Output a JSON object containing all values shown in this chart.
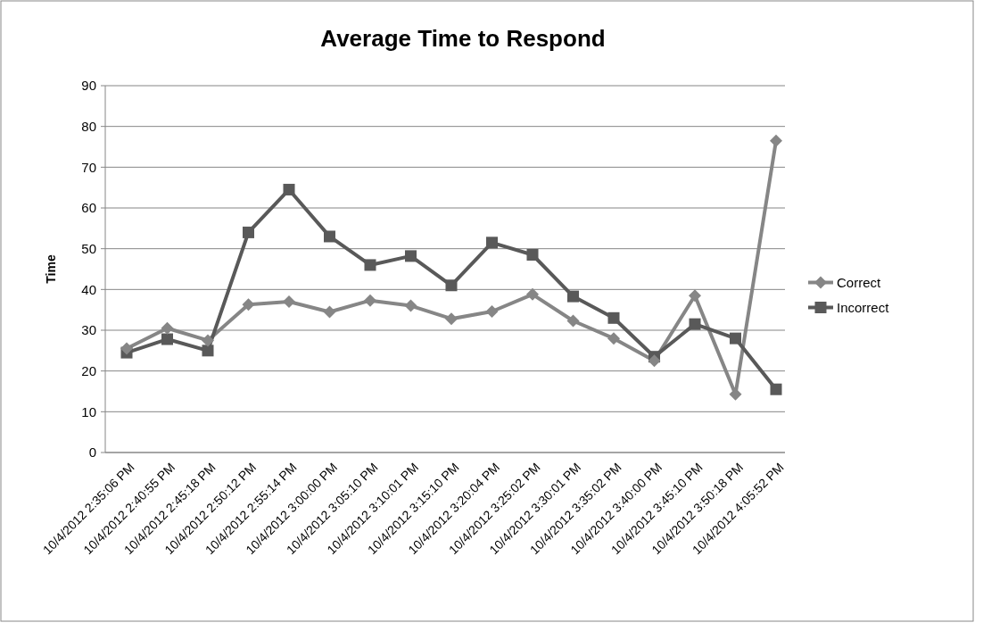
{
  "chart_data": {
    "type": "line",
    "title": "Average Time to Respond",
    "ylabel": "Time",
    "categories": [
      "10/4/2012 2:35:06 PM",
      "10/4/2012 2:40:55 PM",
      "10/4/2012 2:45:18 PM",
      "10/4/2012 2:50:12 PM",
      "10/4/2012 2:55:14 PM",
      "10/4/2012 3:00:00 PM",
      "10/4/2012 3:05:10 PM",
      "10/4/2012 3:10:01 PM",
      "10/4/2012 3:15:10 PM",
      "10/4/2012 3:20:04 PM",
      "10/4/2012 3:25:02 PM",
      "10/4/2012 3:30:01 PM",
      "10/4/2012 3:35:02 PM",
      "10/4/2012 3:40:00 PM",
      "10/4/2012 3:45:10 PM",
      "10/4/2012 3:50:18 PM",
      "10/4/2012 4:05:52 PM"
    ],
    "series": [
      {
        "name": "Correct",
        "color": "#868686",
        "marker": "diamond",
        "values": [
          25.5,
          30.5,
          27.5,
          36.3,
          37,
          34.5,
          37.3,
          36,
          32.8,
          34.6,
          38.8,
          32.3,
          28,
          22.5,
          38.5,
          14.3,
          76.5
        ]
      },
      {
        "name": "Incorrect",
        "color": "#595959",
        "marker": "square",
        "values": [
          24.5,
          27.8,
          25,
          54,
          64.5,
          53,
          46,
          48.2,
          41,
          51.5,
          48.5,
          38.3,
          33,
          23.5,
          31.5,
          28,
          15.5
        ]
      }
    ],
    "ylim": [
      0,
      90
    ],
    "yticks": [
      0,
      10,
      20,
      30,
      40,
      50,
      60,
      70,
      80,
      90
    ],
    "grid": "y",
    "legend": "right",
    "line_style": "solid"
  }
}
